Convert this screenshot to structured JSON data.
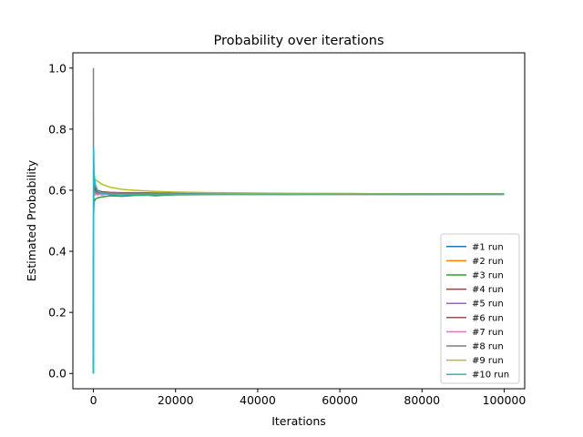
{
  "chart_data": {
    "type": "line",
    "title": "Probability over iterations",
    "xlabel": "Iterations",
    "ylabel": "Estimated Probability",
    "xlim": [
      -5000,
      105000
    ],
    "ylim": [
      -0.05,
      1.05
    ],
    "xticks": [
      0,
      20000,
      40000,
      60000,
      80000,
      100000
    ],
    "xtick_labels": [
      "0",
      "20000",
      "40000",
      "60000",
      "80000",
      "100000"
    ],
    "yticks": [
      0.0,
      0.2,
      0.4,
      0.6,
      0.8,
      1.0
    ],
    "ytick_labels": [
      "0.0",
      "0.2",
      "0.4",
      "0.6",
      "0.8",
      "1.0"
    ],
    "grid": false,
    "legend_position": "lower-right",
    "series": [
      {
        "name": "#1 run",
        "color": "#1f77b4",
        "x": [
          0,
          50,
          150,
          400,
          1000,
          2000,
          4000,
          7000,
          10000,
          15000,
          20000,
          30000,
          45000,
          60000,
          80000,
          100000
        ],
        "y": [
          0.0,
          0.64,
          0.6,
          0.59,
          0.6,
          0.585,
          0.59,
          0.585,
          0.588,
          0.582,
          0.586,
          0.587,
          0.586,
          0.587,
          0.586,
          0.587
        ]
      },
      {
        "name": "#2 run",
        "color": "#ff7f0e",
        "x": [
          0,
          50,
          150,
          400,
          1000,
          2000,
          4000,
          7000,
          10000,
          15000,
          20000,
          30000,
          45000,
          60000,
          80000,
          100000
        ],
        "y": [
          0.0,
          0.55,
          0.6,
          0.59,
          0.585,
          0.59,
          0.588,
          0.586,
          0.589,
          0.587,
          0.588,
          0.587,
          0.588,
          0.587,
          0.587,
          0.588
        ]
      },
      {
        "name": "#3 run",
        "color": "#2ca02c",
        "x": [
          0,
          50,
          150,
          400,
          1000,
          2000,
          4000,
          7000,
          10000,
          15000,
          20000,
          30000,
          45000,
          60000,
          80000,
          100000
        ],
        "y": [
          0.0,
          0.52,
          0.56,
          0.57,
          0.575,
          0.578,
          0.582,
          0.58,
          0.583,
          0.584,
          0.585,
          0.586,
          0.587,
          0.587,
          0.587,
          0.587
        ]
      },
      {
        "name": "#4 run",
        "color": "#d62728",
        "x": [
          0,
          50,
          150,
          400,
          1000,
          2000,
          4000,
          7000,
          10000,
          15000,
          20000,
          30000,
          45000,
          60000,
          80000,
          100000
        ],
        "y": [
          0.0,
          0.6,
          0.62,
          0.605,
          0.6,
          0.595,
          0.592,
          0.59,
          0.591,
          0.59,
          0.589,
          0.589,
          0.588,
          0.588,
          0.588,
          0.588
        ]
      },
      {
        "name": "#5 run",
        "color": "#9467bd",
        "x": [
          0,
          50,
          150,
          400,
          1000,
          2000,
          4000,
          7000,
          10000,
          15000,
          20000,
          30000,
          45000,
          60000,
          80000,
          100000
        ],
        "y": [
          0.0,
          0.58,
          0.6,
          0.595,
          0.59,
          0.588,
          0.587,
          0.586,
          0.588,
          0.587,
          0.587,
          0.587,
          0.588,
          0.587,
          0.587,
          0.587
        ]
      },
      {
        "name": "#6 run",
        "color": "#8c564b",
        "x": [
          0,
          50,
          150,
          400,
          1000,
          2000,
          4000,
          7000,
          10000,
          15000,
          20000,
          30000,
          45000,
          60000,
          80000,
          100000
        ],
        "y": [
          0.0,
          0.62,
          0.61,
          0.6,
          0.598,
          0.595,
          0.593,
          0.592,
          0.592,
          0.591,
          0.59,
          0.59,
          0.589,
          0.589,
          0.588,
          0.588
        ]
      },
      {
        "name": "#7 run",
        "color": "#e377c2",
        "x": [
          0,
          50,
          150,
          400,
          1000,
          2000,
          4000,
          7000,
          10000,
          15000,
          20000,
          30000,
          45000,
          60000,
          80000,
          100000
        ],
        "y": [
          0.0,
          0.57,
          0.59,
          0.585,
          0.587,
          0.586,
          0.588,
          0.587,
          0.587,
          0.587,
          0.588,
          0.587,
          0.587,
          0.587,
          0.587,
          0.587
        ]
      },
      {
        "name": "#8 run",
        "color": "#7f7f7f",
        "x": [
          0,
          15,
          50,
          150,
          400,
          1000,
          2000,
          4000,
          7000,
          10000,
          15000,
          20000,
          30000,
          45000,
          60000,
          80000,
          100000
        ],
        "y": [
          1.0,
          0.3,
          0.62,
          0.6,
          0.595,
          0.593,
          0.592,
          0.591,
          0.59,
          0.59,
          0.589,
          0.589,
          0.589,
          0.588,
          0.588,
          0.588,
          0.588
        ]
      },
      {
        "name": "#9 run",
        "color": "#bcbd22",
        "x": [
          0,
          50,
          150,
          400,
          1000,
          2000,
          4000,
          7000,
          10000,
          15000,
          20000,
          30000,
          45000,
          60000,
          80000,
          100000
        ],
        "y": [
          0.0,
          0.66,
          0.64,
          0.635,
          0.63,
          0.62,
          0.61,
          0.603,
          0.6,
          0.596,
          0.594,
          0.592,
          0.59,
          0.589,
          0.588,
          0.588
        ]
      },
      {
        "name": "#10 run",
        "color": "#17becf",
        "x": [
          0,
          50,
          150,
          400,
          1000,
          2000,
          4000,
          7000,
          10000,
          15000,
          20000,
          30000,
          45000,
          60000,
          80000,
          100000
        ],
        "y": [
          0.0,
          0.74,
          0.66,
          0.62,
          0.6,
          0.59,
          0.586,
          0.585,
          0.586,
          0.586,
          0.587,
          0.587,
          0.587,
          0.587,
          0.587,
          0.587
        ]
      }
    ]
  }
}
